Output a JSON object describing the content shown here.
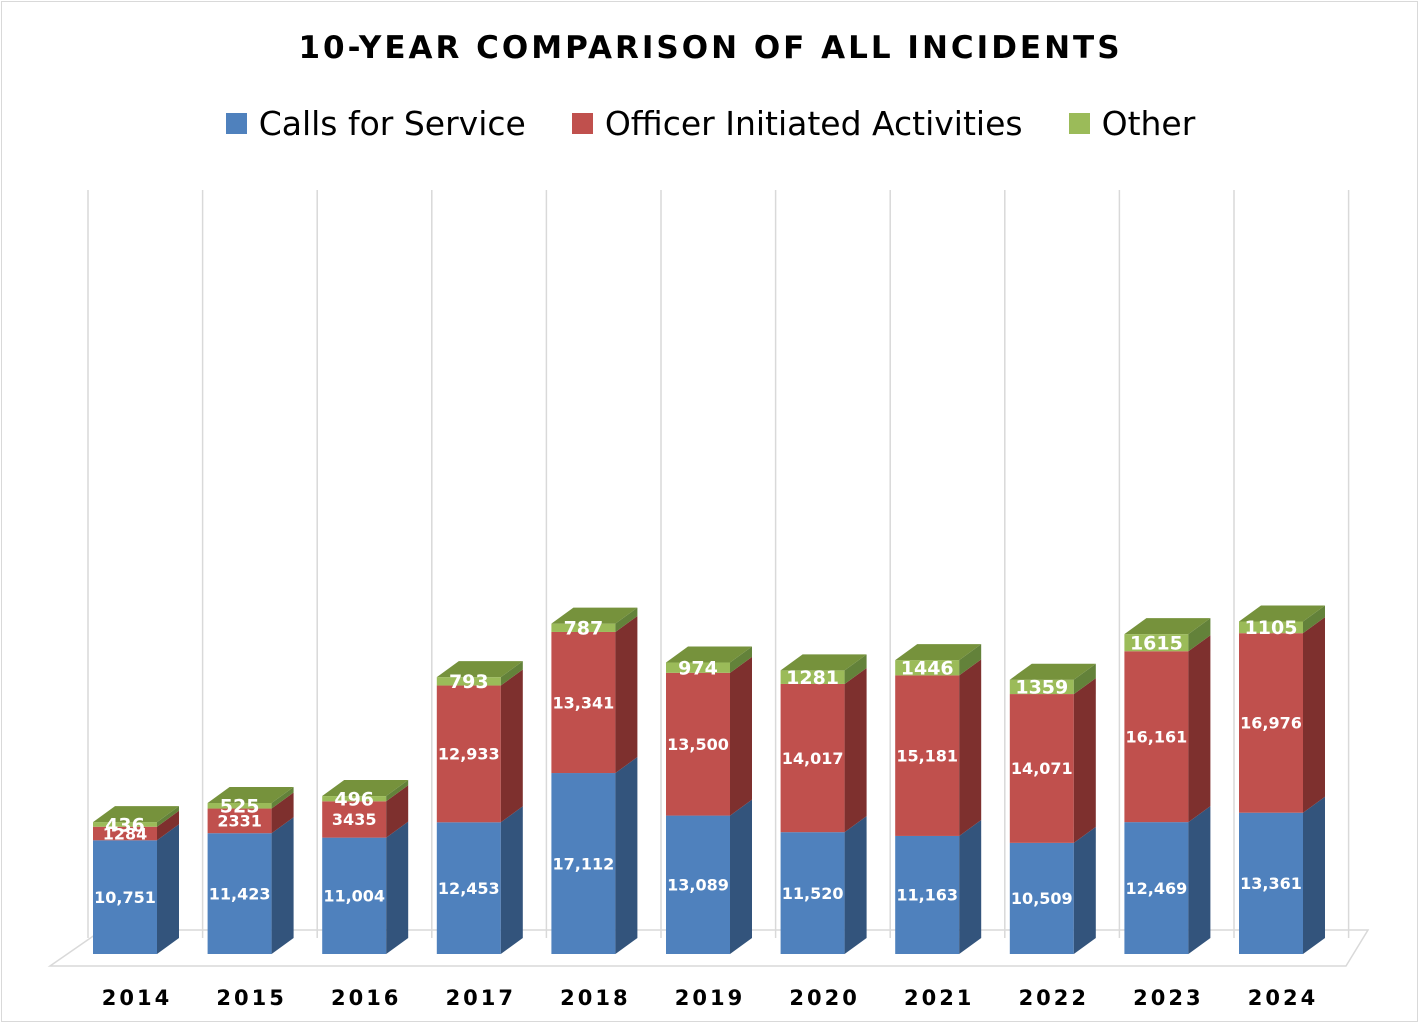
{
  "colors": {
    "calls_front": "#4f81bd",
    "calls_side": "#33547c",
    "calls_top": "#6d97cc",
    "officer_front": "#c0504d",
    "officer_side": "#7e302e",
    "officer_top": "#d06c69",
    "other_front": "#9bbb59",
    "other_side": "#63823a",
    "other_top": "#76923c",
    "grid": "#d9d9d9"
  },
  "chart_data": {
    "type": "bar",
    "stacked": true,
    "style": "3d-column",
    "title": "10-YEAR COMPARISON OF ALL INCIDENTS",
    "legend_position": "top",
    "categories": [
      "2014",
      "2015",
      "2016",
      "2017",
      "2018",
      "2019",
      "2020",
      "2021",
      "2022",
      "2023",
      "2024"
    ],
    "series": [
      {
        "name": "Calls for Service",
        "values": [
          10751,
          11423,
          11004,
          12453,
          17112,
          13089,
          11520,
          11163,
          10509,
          12469,
          13361
        ],
        "labels": [
          "10,751",
          "11,423",
          "11,004",
          "12,453",
          "17,112",
          "13,089",
          "11,520",
          "11,163",
          "10,509",
          "12,469",
          "13,361"
        ]
      },
      {
        "name": "Officer Initiated Activities",
        "values": [
          1284,
          2331,
          3435,
          12933,
          13341,
          13500,
          14017,
          15181,
          14071,
          16161,
          16976
        ],
        "labels": [
          "1284",
          "2331",
          "3435",
          "12,933",
          "13,341",
          "13,500",
          "14,017",
          "15,181",
          "14,071",
          "16,161",
          "16,976"
        ]
      },
      {
        "name": "Other",
        "values": [
          436,
          525,
          496,
          793,
          787,
          974,
          1281,
          1446,
          1359,
          1615,
          1105
        ],
        "labels": [
          "436",
          "525",
          "496",
          "793",
          "787",
          "974",
          "1281",
          "1446",
          "1359",
          "1615",
          "1105"
        ]
      }
    ],
    "grid": true
  }
}
